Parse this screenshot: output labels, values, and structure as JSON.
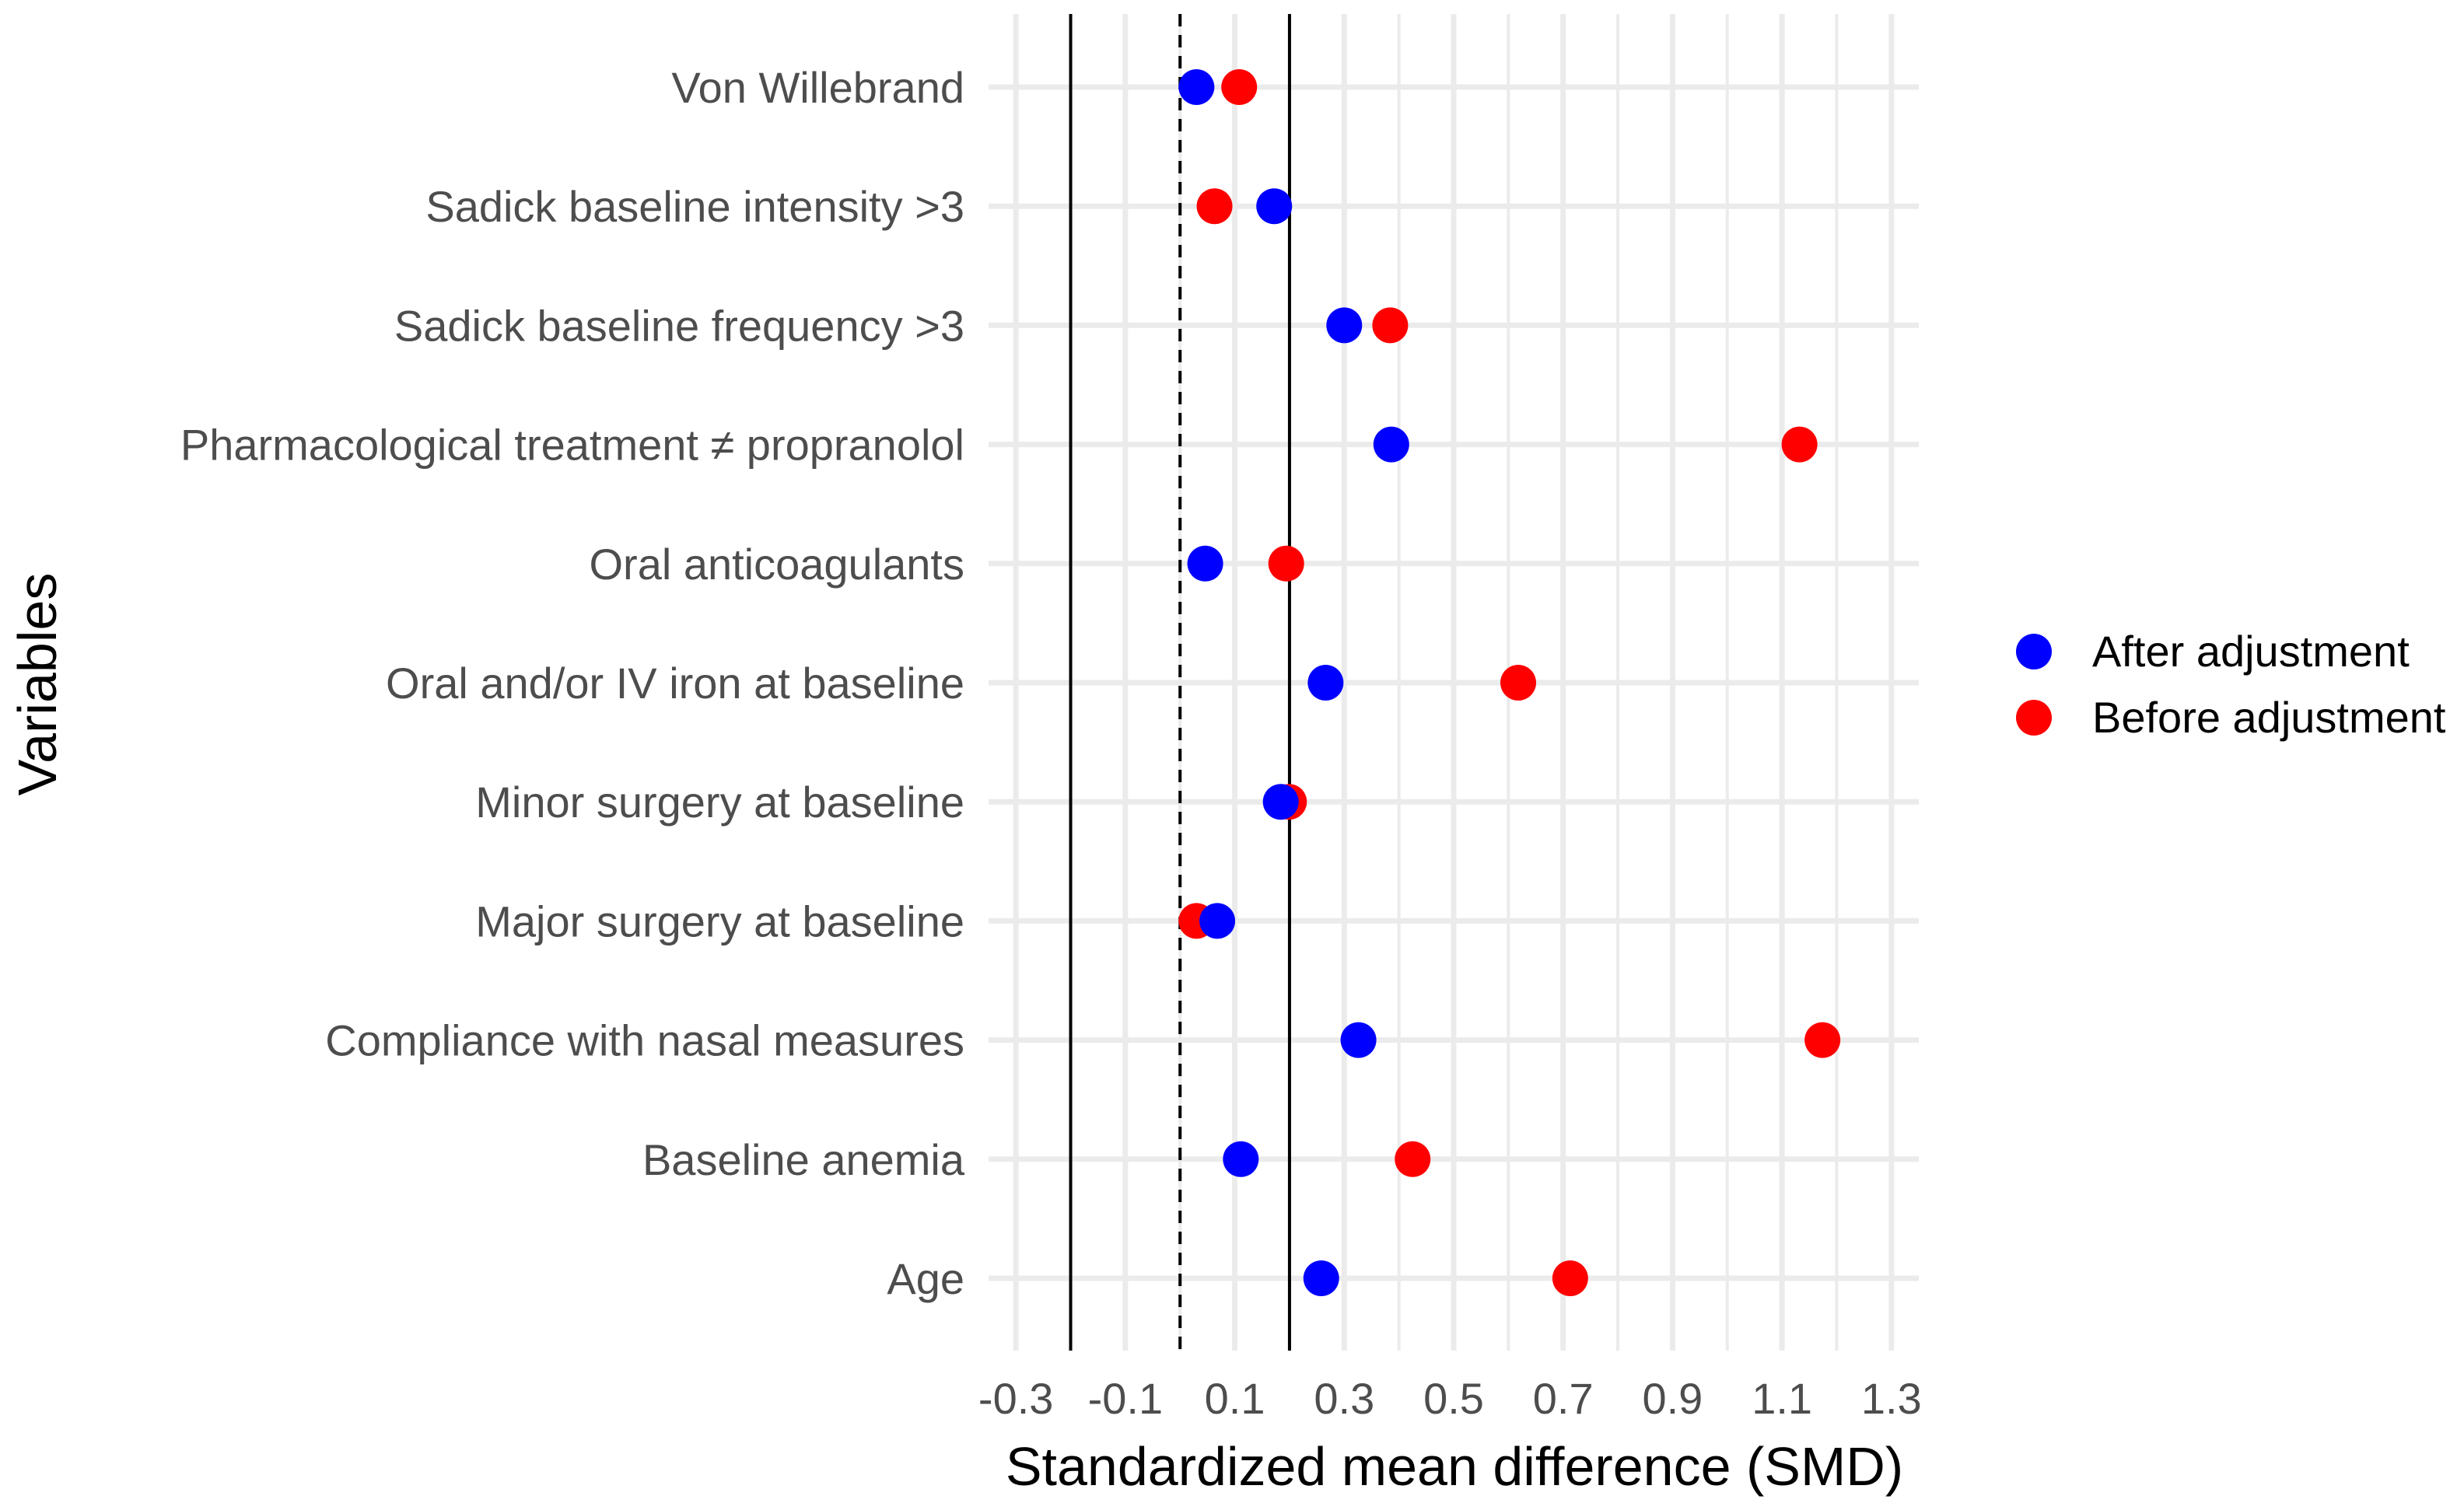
{
  "chart_data": {
    "type": "scatter",
    "title": "",
    "xlabel": "Standardized mean difference (SMD)",
    "ylabel": "Variables",
    "xlim": [
      -0.35,
      1.35
    ],
    "xticks": [
      -0.3,
      -0.1,
      0.1,
      0.3,
      0.5,
      0.7,
      0.9,
      1.1,
      1.3
    ],
    "xtick_labels": [
      "-0.3",
      "-0.1",
      "0.1",
      "0.3",
      "0.5",
      "0.7",
      "0.9",
      "1.1",
      "1.3"
    ],
    "categories": [
      "Von Willebrand",
      "Sadick baseline intensity >3",
      "Sadick baseline frequency >3",
      "Pharmacological treatment ≠ propranolol",
      "Oral anticoagulants",
      "Oral and/or IV iron at baseline",
      "Minor surgery at baseline",
      "Major surgery at baseline",
      "Compliance with nasal measures",
      "Baseline anemia",
      "Age"
    ],
    "series": [
      {
        "name": "Before adjustment",
        "color": "#ff0000",
        "values": [
          0.108,
          0.063,
          0.384,
          1.132,
          0.194,
          0.618,
          0.199,
          0.03,
          1.174,
          0.425,
          0.713
        ]
      },
      {
        "name": "After adjustment",
        "color": "#0000ff",
        "values": [
          0.03,
          0.172,
          0.3,
          0.386,
          0.046,
          0.266,
          0.184,
          0.068,
          0.326,
          0.111,
          0.258
        ]
      }
    ],
    "reference_lines": [
      {
        "x": -0.2,
        "style": "solid"
      },
      {
        "x": 0.0,
        "style": "dashed"
      },
      {
        "x": 0.2,
        "style": "solid"
      }
    ],
    "legend": {
      "position": "right",
      "entries": [
        {
          "label": "After adjustment",
          "color": "#0000ff"
        },
        {
          "label": "Before adjustment",
          "color": "#ff0000"
        }
      ]
    },
    "grid": true
  },
  "colors": {
    "grid": "#ebebeb",
    "text": "#4d4d4d",
    "reference": "#000000"
  }
}
